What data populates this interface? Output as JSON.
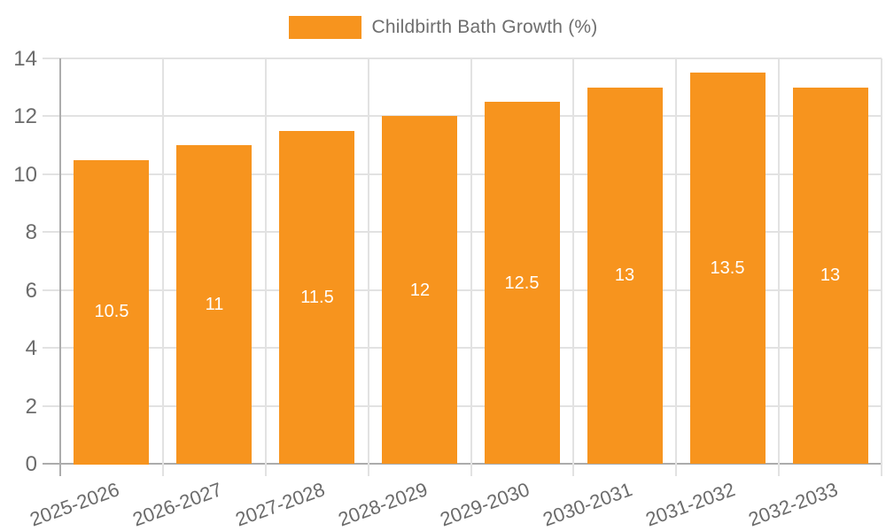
{
  "chart_data": {
    "type": "bar",
    "title": "",
    "xlabel": "",
    "ylabel": "",
    "legend": "Childbirth Bath Growth (%)",
    "legend_position": "top",
    "grid": true,
    "categories": [
      "2025-2026",
      "2026-2027",
      "2027-2028",
      "2028-2029",
      "2029-2030",
      "2030-2031",
      "2031-2032",
      "2032-2033"
    ],
    "series": [
      {
        "name": "Childbirth Bath Growth (%)",
        "values": [
          10.5,
          11,
          11.5,
          12,
          12.5,
          13,
          13.5,
          13
        ]
      }
    ],
    "values": [
      10.5,
      11,
      11.5,
      12,
      12.5,
      13,
      13.5,
      13
    ],
    "ylim": [
      0,
      14
    ],
    "yticks": [
      0,
      2,
      4,
      6,
      8,
      10,
      12,
      14
    ],
    "colors": {
      "bar": "#F7941E",
      "grid": "#E2E2E2",
      "axis": "#ACACAC",
      "tick_label": "#6B6B6B",
      "value_label": "#FFFFFF",
      "background": "#FFFFFF"
    }
  }
}
